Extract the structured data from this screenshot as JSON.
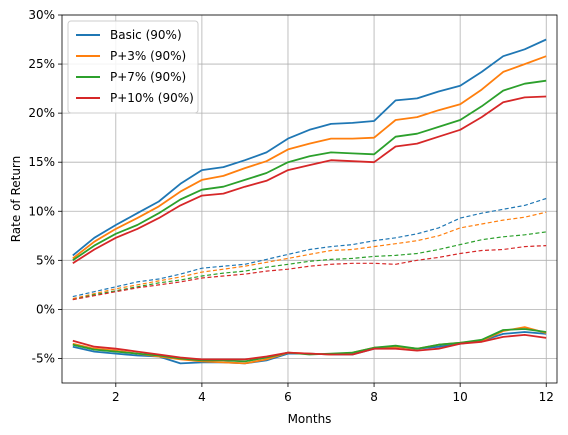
{
  "chart_data": {
    "type": "line",
    "title": "",
    "xlabel": "Months",
    "ylabel": "Rate of Return",
    "xlim": [
      0.75,
      12.25
    ],
    "ylim": [
      -7.5,
      30
    ],
    "x_ticks": [
      2,
      4,
      6,
      8,
      10,
      12
    ],
    "y_ticks": [
      {
        "value": -5,
        "label": "-5%"
      },
      {
        "value": 0,
        "label": "0%"
      },
      {
        "value": 5,
        "label": "5%"
      },
      {
        "value": 10,
        "label": "10%"
      },
      {
        "value": 15,
        "label": "15%"
      },
      {
        "value": 20,
        "label": "20%"
      },
      {
        "value": 25,
        "label": "25%"
      },
      {
        "value": 30,
        "label": "30%"
      }
    ],
    "grid": true,
    "legend_position": "top-left",
    "x": [
      1,
      1.5,
      2,
      2.5,
      3,
      3.5,
      4,
      4.5,
      5,
      5.5,
      6,
      6.5,
      7,
      7.5,
      8,
      8.5,
      9,
      9.5,
      10,
      10.5,
      11,
      11.5,
      12
    ],
    "series": [
      {
        "name": "Basic (90%)",
        "color": "#1f77b4",
        "style": "solid",
        "values": [
          5.5,
          7.3,
          8.6,
          9.8,
          11.0,
          12.8,
          14.2,
          14.5,
          15.2,
          16.0,
          17.4,
          18.3,
          18.9,
          19.0,
          19.2,
          21.3,
          21.5,
          22.2,
          22.8,
          24.2,
          25.8,
          26.5,
          27.5
        ]
      },
      {
        "name": "P+3% (90%)",
        "color": "#ff7f0e",
        "style": "solid",
        "values": [
          5.2,
          6.9,
          8.2,
          9.3,
          10.5,
          12.0,
          13.2,
          13.6,
          14.4,
          15.1,
          16.3,
          16.9,
          17.4,
          17.4,
          17.5,
          19.3,
          19.6,
          20.3,
          20.9,
          22.4,
          24.2,
          25.0,
          25.8
        ]
      },
      {
        "name": "P+7% (90%)",
        "color": "#2ca02c",
        "style": "solid",
        "values": [
          5.0,
          6.5,
          7.7,
          8.6,
          9.8,
          11.2,
          12.2,
          12.5,
          13.2,
          13.9,
          15.0,
          15.6,
          16.0,
          15.9,
          15.8,
          17.6,
          17.9,
          18.6,
          19.3,
          20.7,
          22.3,
          23.0,
          23.3
        ]
      },
      {
        "name": "P+10% (90%)",
        "color": "#d62728",
        "style": "solid",
        "values": [
          4.7,
          6.1,
          7.3,
          8.2,
          9.3,
          10.6,
          11.6,
          11.8,
          12.5,
          13.1,
          14.2,
          14.7,
          15.2,
          15.1,
          15.0,
          16.6,
          16.9,
          17.6,
          18.3,
          19.6,
          21.1,
          21.6,
          21.7
        ]
      },
      {
        "name": "",
        "color": "#1f77b4",
        "style": "dashed",
        "values": [
          1.3,
          1.8,
          2.3,
          2.8,
          3.1,
          3.6,
          4.2,
          4.4,
          4.6,
          5.1,
          5.6,
          6.1,
          6.4,
          6.6,
          7.0,
          7.3,
          7.7,
          8.3,
          9.3,
          9.8,
          10.2,
          10.6,
          11.3
        ]
      },
      {
        "name": "",
        "color": "#ff7f0e",
        "style": "dashed",
        "values": [
          1.1,
          1.6,
          2.1,
          2.5,
          2.9,
          3.3,
          3.8,
          4.1,
          4.4,
          4.8,
          5.2,
          5.6,
          6.0,
          6.1,
          6.4,
          6.7,
          7.0,
          7.5,
          8.3,
          8.7,
          9.1,
          9.4,
          9.9
        ]
      },
      {
        "name": "",
        "color": "#2ca02c",
        "style": "dashed",
        "values": [
          1.0,
          1.5,
          1.9,
          2.3,
          2.7,
          3.0,
          3.4,
          3.7,
          3.9,
          4.3,
          4.6,
          4.9,
          5.1,
          5.2,
          5.4,
          5.5,
          5.7,
          6.1,
          6.6,
          7.1,
          7.4,
          7.6,
          7.9
        ]
      },
      {
        "name": "",
        "color": "#d62728",
        "style": "dashed",
        "values": [
          1.0,
          1.4,
          1.8,
          2.2,
          2.5,
          2.8,
          3.2,
          3.4,
          3.6,
          3.9,
          4.1,
          4.4,
          4.6,
          4.7,
          4.7,
          4.6,
          5.0,
          5.3,
          5.7,
          6.0,
          6.1,
          6.4,
          6.5
        ]
      },
      {
        "name": "",
        "color": "#1f77b4",
        "style": "solid",
        "values": [
          -3.8,
          -4.3,
          -4.5,
          -4.7,
          -4.8,
          -5.5,
          -5.4,
          -5.4,
          -5.5,
          -5.2,
          -4.5,
          -4.5,
          -4.6,
          -4.6,
          -4.0,
          -3.8,
          -4.0,
          -3.8,
          -3.5,
          -3.2,
          -2.5,
          -2.3,
          -2.5
        ]
      },
      {
        "name": "",
        "color": "#ff7f0e",
        "style": "solid",
        "values": [
          -3.5,
          -4.0,
          -4.2,
          -4.5,
          -4.8,
          -5.1,
          -5.3,
          -5.4,
          -5.5,
          -5.1,
          -4.4,
          -4.5,
          -4.6,
          -4.4,
          -3.9,
          -3.8,
          -4.0,
          -3.6,
          -3.4,
          -3.2,
          -2.2,
          -1.8,
          -2.4
        ]
      },
      {
        "name": "",
        "color": "#2ca02c",
        "style": "solid",
        "values": [
          -3.6,
          -4.1,
          -4.3,
          -4.5,
          -4.7,
          -5.0,
          -5.2,
          -5.2,
          -5.3,
          -4.9,
          -4.4,
          -4.6,
          -4.5,
          -4.4,
          -3.9,
          -3.7,
          -4.0,
          -3.6,
          -3.4,
          -3.1,
          -2.1,
          -2.0,
          -2.3
        ]
      },
      {
        "name": "",
        "color": "#d62728",
        "style": "solid",
        "values": [
          -3.2,
          -3.8,
          -4.0,
          -4.3,
          -4.6,
          -4.9,
          -5.1,
          -5.1,
          -5.1,
          -4.8,
          -4.4,
          -4.5,
          -4.6,
          -4.6,
          -4.0,
          -4.0,
          -4.2,
          -4.0,
          -3.5,
          -3.3,
          -2.8,
          -2.6,
          -2.9
        ]
      }
    ]
  }
}
